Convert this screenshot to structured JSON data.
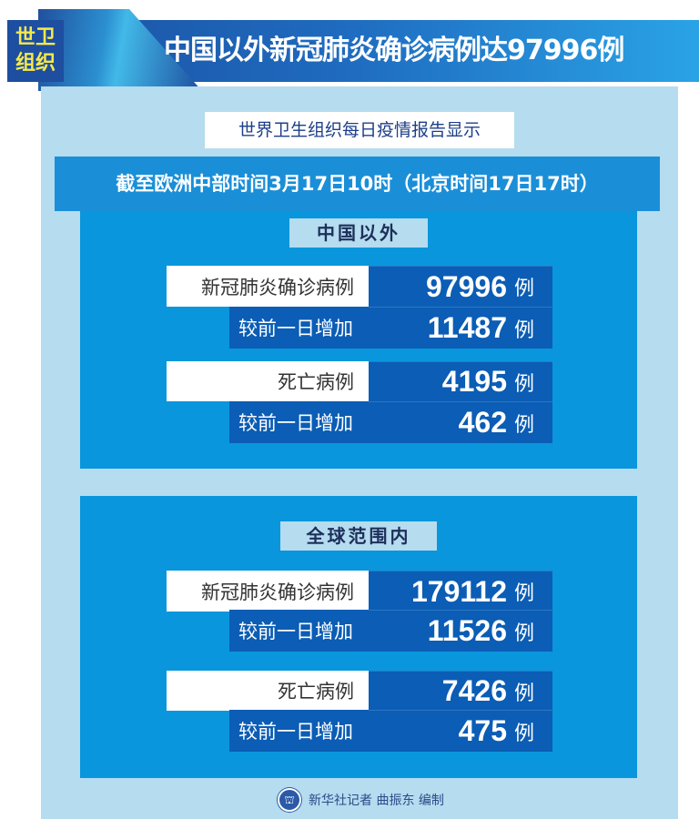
{
  "header": {
    "badge": "世卫组织",
    "title": "中国以外新冠肺炎确诊病例达97996例"
  },
  "subtitle": "世界卫生组织每日疫情报告显示",
  "timestamp": "截至欧洲中部时间3月17日10时（北京时间17日17时）",
  "sections": [
    {
      "title": "中国以外",
      "rows": [
        {
          "label": "新冠肺炎确诊病例",
          "value": "97996",
          "unit": "例"
        },
        {
          "label": "较前一日增加",
          "value": "11487",
          "unit": "例"
        },
        {
          "label": "死亡病例",
          "value": "4195",
          "unit": "例"
        },
        {
          "label": "较前一日增加",
          "value": "462",
          "unit": "例"
        }
      ]
    },
    {
      "title": "全球范围内",
      "rows": [
        {
          "label": "新冠肺炎确诊病例",
          "value": "179112",
          "unit": "例"
        },
        {
          "label": "较前一日增加",
          "value": "11526",
          "unit": "例"
        },
        {
          "label": "死亡病例",
          "value": "7426",
          "unit": "例"
        },
        {
          "label": "较前一日增加",
          "value": "475",
          "unit": "例"
        }
      ]
    }
  ],
  "footer": {
    "logo_icon": "xinhua-logo",
    "credit": "新华社记者 曲振东 编制"
  },
  "colors": {
    "header": "#1f6cc0",
    "panel": "#b5dcef",
    "section": "#0a96dc",
    "value_bg": "#0b5db5",
    "badge_text": "#f5e94a"
  }
}
